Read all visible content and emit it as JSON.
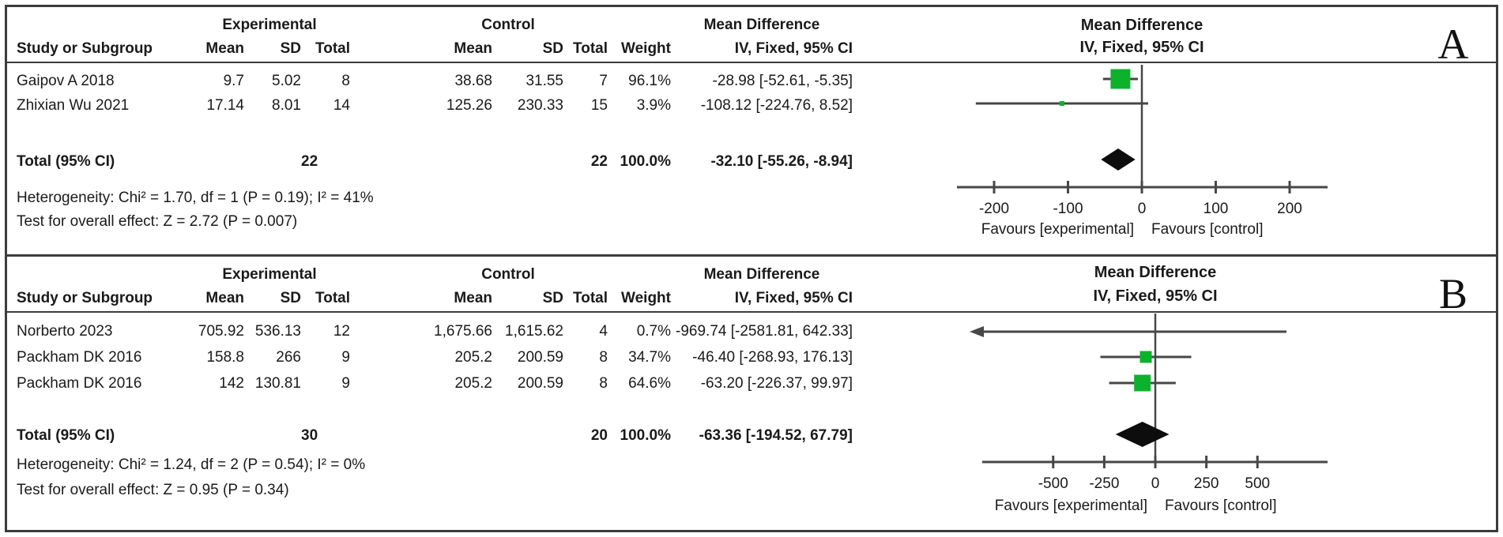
{
  "colors": {
    "marker_green": "#0db22c",
    "line": "#474747",
    "diamond": "#0d0d0d",
    "text": "#1a1a1a",
    "frame": "#3c3c3c"
  },
  "table_headers": {
    "study": "Study or Subgroup",
    "mean": "Mean",
    "sd": "SD",
    "total": "Total",
    "weight": "Weight",
    "iv": "IV, Fixed, 95% CI",
    "experimental": "Experimental",
    "control": "Control",
    "mean_difference": "Mean Difference"
  },
  "panels": [
    {
      "label": "A",
      "rows": [
        {
          "study": "Gaipov A 2018",
          "mean_e": "9.7",
          "sd_e": "5.02",
          "total_e": "8",
          "mean_c": "38.68",
          "sd_c": "31.55",
          "total_c": "7",
          "weight": "96.1%",
          "ci": "-28.98 [-52.61, -5.35]"
        },
        {
          "study": "Zhixian Wu 2021",
          "mean_e": "17.14",
          "sd_e": "8.01",
          "total_e": "14",
          "mean_c": "125.26",
          "sd_c": "230.33",
          "total_c": "15",
          "weight": "3.9%",
          "ci": "-108.12 [-224.76, 8.52]"
        }
      ],
      "total_row": {
        "label": "Total (95% CI)",
        "total_e": "22",
        "total_c": "22",
        "weight": "100.0%",
        "ci": "-32.10 [-55.26, -8.94]"
      },
      "heterogeneity": "Heterogeneity: Chi² = 1.70, df = 1 (P = 0.19); I² = 41%",
      "overall_test": "Test for overall effect: Z = 2.72 (P = 0.007)"
    },
    {
      "label": "B",
      "rows": [
        {
          "study": "Norberto 2023",
          "mean_e": "705.92",
          "sd_e": "536.13",
          "total_e": "12",
          "mean_c": "1,675.66",
          "sd_c": "1,615.62",
          "total_c": "4",
          "weight": "0.7%",
          "ci": "-969.74 [-2581.81, 642.33]"
        },
        {
          "study": "Packham DK 2016",
          "mean_e": "158.8",
          "sd_e": "266",
          "total_e": "9",
          "mean_c": "205.2",
          "sd_c": "200.59",
          "total_c": "8",
          "weight": "34.7%",
          "ci": "-46.40 [-268.93, 176.13]"
        },
        {
          "study": "Packham DK 2016",
          "mean_e": "142",
          "sd_e": "130.81",
          "total_e": "9",
          "mean_c": "205.2",
          "sd_c": "200.59",
          "total_c": "8",
          "weight": "64.6%",
          "ci": "-63.20 [-226.37, 99.97]"
        }
      ],
      "total_row": {
        "label": "Total (95% CI)",
        "total_e": "30",
        "total_c": "20",
        "weight": "100.0%",
        "ci": "-63.36 [-194.52, 67.79]"
      },
      "heterogeneity": "Heterogeneity: Chi² = 1.24, df = 2 (P = 0.54); I² = 0%",
      "overall_test": "Test for overall effect: Z = 0.95 (P = 0.34)"
    }
  ],
  "chart_data": [
    {
      "type": "forest",
      "panel": "A",
      "effect_label": "Mean Difference",
      "method_label": "IV, Fixed, 95% CI",
      "studies": [
        {
          "name": "Gaipov A 2018",
          "md": -28.98,
          "lo": -52.61,
          "hi": -5.35,
          "weight_pct": 96.1
        },
        {
          "name": "Zhixian Wu 2021",
          "md": -108.12,
          "lo": -224.76,
          "hi": 8.52,
          "weight_pct": 3.9
        }
      ],
      "total": {
        "md": -32.1,
        "lo": -55.26,
        "hi": -8.94
      },
      "axis": {
        "ticks": [
          -200,
          -100,
          0,
          100,
          200
        ],
        "min": -250,
        "max": 250
      },
      "favours_left": "Favours [experimental]",
      "favours_right": "Favours [control]"
    },
    {
      "type": "forest",
      "panel": "B",
      "effect_label": "Mean Difference",
      "method_label": "IV, Fixed, 95% CI",
      "studies": [
        {
          "name": "Norberto 2023",
          "md": -969.74,
          "lo": -2581.81,
          "hi": 642.33,
          "weight_pct": 0.7
        },
        {
          "name": "Packham DK 2016",
          "md": -46.4,
          "lo": -268.93,
          "hi": 176.13,
          "weight_pct": 34.7
        },
        {
          "name": "Packham DK 2016",
          "md": -63.2,
          "lo": -226.37,
          "hi": 99.97,
          "weight_pct": 64.6
        }
      ],
      "total": {
        "md": -63.36,
        "lo": -194.52,
        "hi": 67.79
      },
      "axis": {
        "ticks": [
          -500,
          -250,
          0,
          250,
          500
        ],
        "min": -845,
        "max": 845
      },
      "favours_left": "Favours [experimental]",
      "favours_right": "Favours [control]"
    }
  ]
}
